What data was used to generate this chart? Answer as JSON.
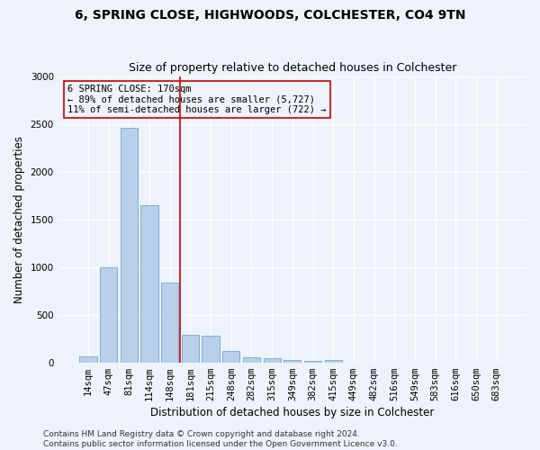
{
  "title_line1": "6, SPRING CLOSE, HIGHWOODS, COLCHESTER, CO4 9TN",
  "title_line2": "Size of property relative to detached houses in Colchester",
  "xlabel": "Distribution of detached houses by size in Colchester",
  "ylabel": "Number of detached properties",
  "categories": [
    "14sqm",
    "47sqm",
    "81sqm",
    "114sqm",
    "148sqm",
    "181sqm",
    "215sqm",
    "248sqm",
    "282sqm",
    "315sqm",
    "349sqm",
    "382sqm",
    "415sqm",
    "449sqm",
    "482sqm",
    "516sqm",
    "549sqm",
    "583sqm",
    "616sqm",
    "650sqm",
    "683sqm"
  ],
  "values": [
    60,
    1000,
    2460,
    1650,
    840,
    290,
    280,
    120,
    50,
    40,
    30,
    20,
    30,
    0,
    0,
    0,
    0,
    0,
    0,
    0,
    0
  ],
  "bar_color": "#b8d0ea",
  "bar_edgecolor": "#6aaad4",
  "vline_color": "#cc0000",
  "vline_xindex": 4.5,
  "annotation_text": "6 SPRING CLOSE: 170sqm\n← 89% of detached houses are smaller (5,727)\n11% of semi-detached houses are larger (722) →",
  "annotation_box_edgecolor": "#cc0000",
  "ylim": [
    0,
    3000
  ],
  "yticks": [
    0,
    500,
    1000,
    1500,
    2000,
    2500,
    3000
  ],
  "footer_line1": "Contains HM Land Registry data © Crown copyright and database right 2024.",
  "footer_line2": "Contains public sector information licensed under the Open Government Licence v3.0.",
  "background_color": "#eef2fb",
  "grid_color": "#ffffff",
  "title_fontsize": 10,
  "subtitle_fontsize": 9,
  "axis_label_fontsize": 8.5,
  "tick_fontsize": 7.5,
  "footer_fontsize": 6.5
}
